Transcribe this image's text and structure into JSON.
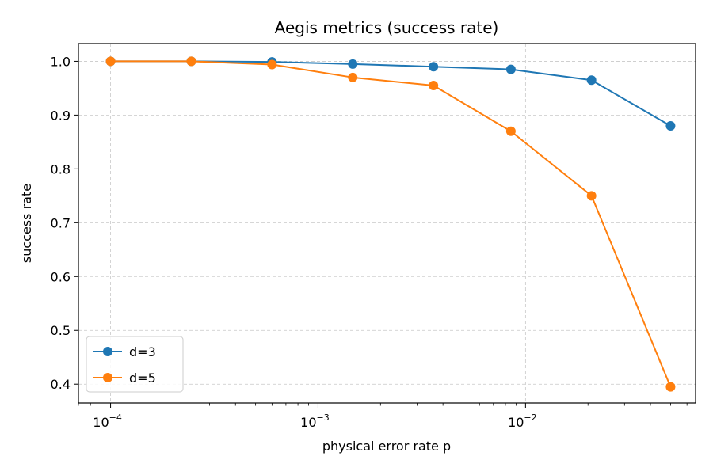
{
  "chart_data": {
    "type": "line",
    "title": "Aegis metrics (success rate)",
    "xlabel": "physical error rate p",
    "ylabel": "success rate",
    "xscale": "log",
    "xlim": [
      7e-05,
      0.066
    ],
    "ylim": [
      0.365,
      1.033
    ],
    "grid": true,
    "grid_style": "dashed",
    "legend_position": "lower-left",
    "x": [
      0.0001,
      0.000245,
      0.0006,
      0.00147,
      0.0036,
      0.0085,
      0.0208,
      0.05
    ],
    "x_ticks": [
      {
        "value": 0.0001,
        "base": "10",
        "exp": "−4"
      },
      {
        "value": 0.001,
        "base": "10",
        "exp": "−3"
      },
      {
        "value": 0.01,
        "base": "10",
        "exp": "−2"
      }
    ],
    "y_ticks": [
      {
        "value": 0.4,
        "label": "0.4"
      },
      {
        "value": 0.5,
        "label": "0.5"
      },
      {
        "value": 0.6,
        "label": "0.6"
      },
      {
        "value": 0.7,
        "label": "0.7"
      },
      {
        "value": 0.8,
        "label": "0.8"
      },
      {
        "value": 0.9,
        "label": "0.9"
      },
      {
        "value": 1.0,
        "label": "1.0"
      }
    ],
    "series": [
      {
        "name": "d=3",
        "color": "#1f77b4",
        "values": [
          1.0,
          1.0,
          0.999,
          0.995,
          0.99,
          0.985,
          0.965,
          0.88
        ]
      },
      {
        "name": "d=5",
        "color": "#ff7f0e",
        "values": [
          1.0,
          1.0,
          0.994,
          0.97,
          0.955,
          0.87,
          0.75,
          0.395
        ]
      }
    ]
  }
}
